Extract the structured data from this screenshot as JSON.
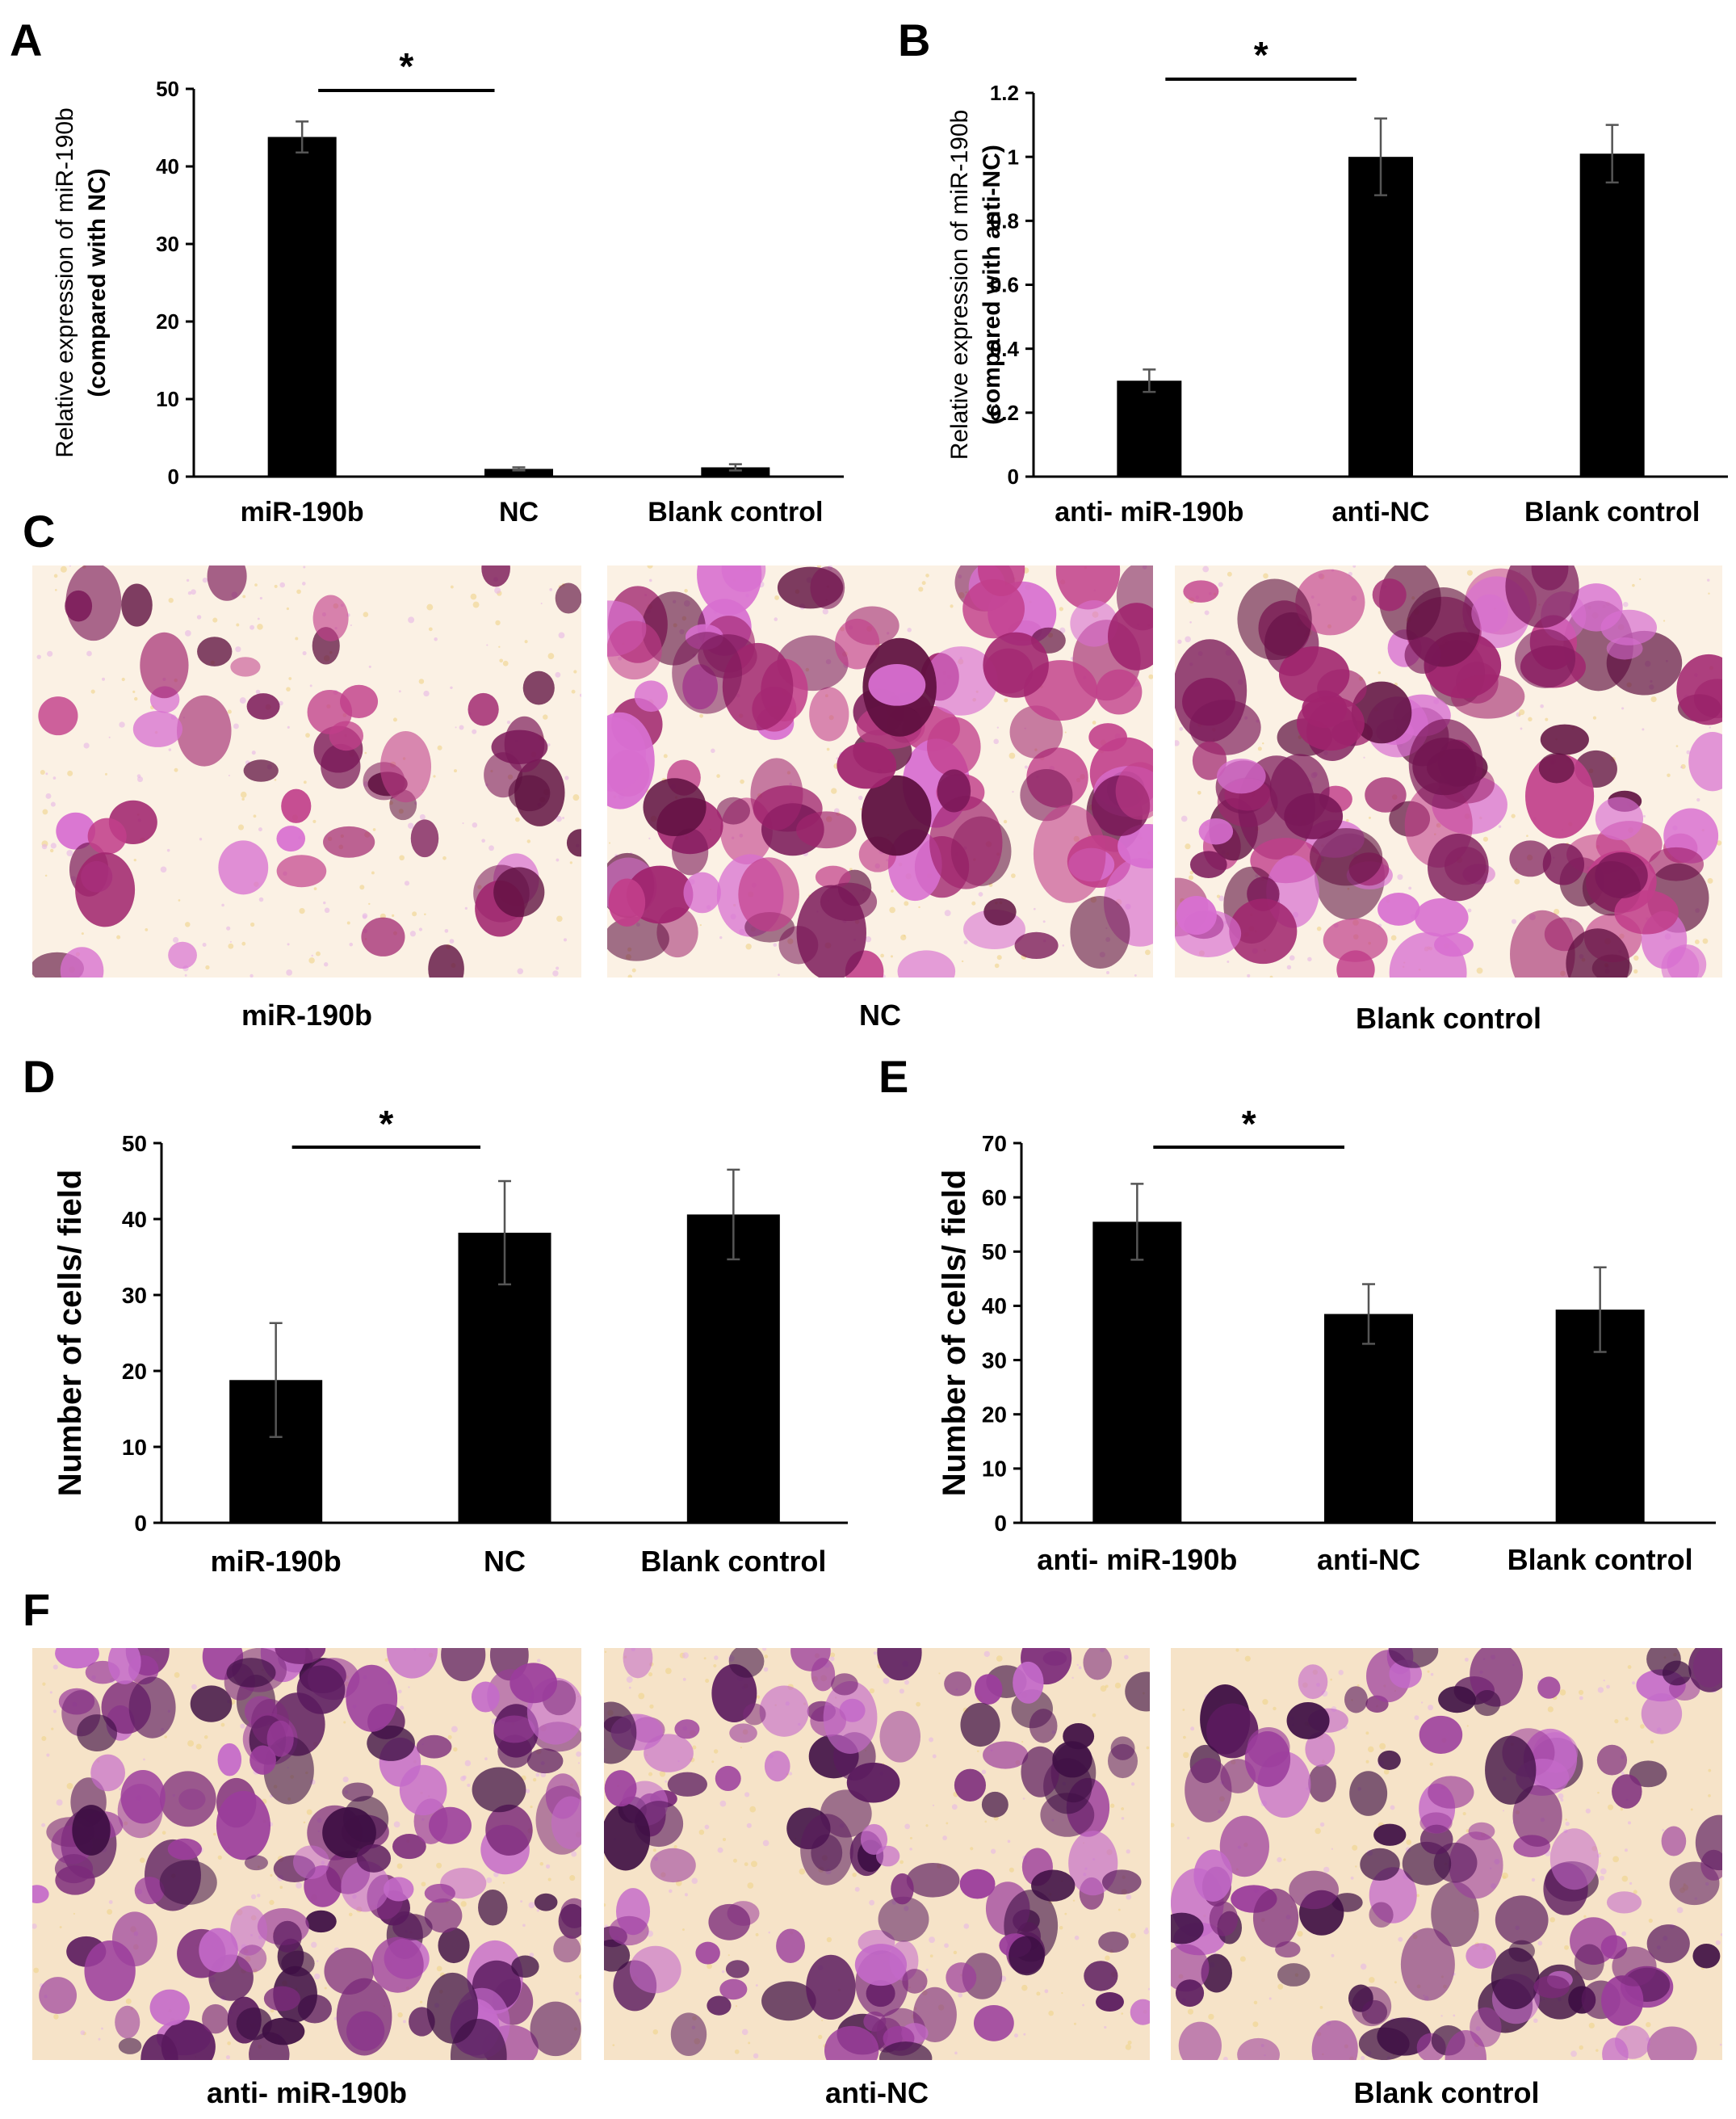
{
  "panels": {
    "A": "A",
    "B": "B",
    "C": "C",
    "D": "D",
    "E": "E",
    "F": "F"
  },
  "colors": {
    "bar": "#000000",
    "background": "#ffffff",
    "stain_light": "#fbf1e4",
    "stain_mid": "#d86fd0",
    "stain_dark": "#7a1858",
    "stain_purple": "#5a1a5e"
  },
  "chart_data": [
    {
      "id": "A",
      "type": "bar",
      "categories": [
        "miR-190b",
        "NC",
        "Blank control"
      ],
      "values": [
        43.8,
        1.0,
        1.2
      ],
      "errors": [
        2.0,
        0.2,
        0.4
      ],
      "ylabel": [
        "Relative expression of miR-190b",
        "(compared with NC)"
      ],
      "yticks": [
        "0",
        "10",
        "20",
        "30",
        "40",
        "50"
      ],
      "ylim": [
        0,
        50
      ],
      "significance": {
        "from": 0,
        "to": 1,
        "label": "*"
      }
    },
    {
      "id": "B",
      "type": "bar",
      "categories": [
        "anti- miR-190b",
        "anti-NC",
        "Blank control"
      ],
      "values": [
        0.3,
        1.0,
        1.01
      ],
      "errors": [
        0.035,
        0.12,
        0.09
      ],
      "ylabel": [
        "Relative expression of miR-190b",
        "(compared with anti-NC)"
      ],
      "yticks": [
        "0",
        "0.2",
        "0.4",
        "0.6",
        "0.8",
        "1",
        "1.2"
      ],
      "ylim": [
        0,
        1.2
      ],
      "significance": {
        "from": 0,
        "to": 1,
        "label": "*"
      }
    },
    {
      "id": "D",
      "type": "bar",
      "categories": [
        "miR-190b",
        "NC",
        "Blank control"
      ],
      "values": [
        18.8,
        38.2,
        40.6
      ],
      "errors": [
        7.5,
        6.8,
        5.9
      ],
      "ylabel": [
        "Number of cells/ field"
      ],
      "yticks": [
        "0",
        "10",
        "20",
        "30",
        "40",
        "50"
      ],
      "ylim": [
        0,
        50
      ],
      "significance": {
        "from": 0,
        "to": 1,
        "label": "*"
      }
    },
    {
      "id": "E",
      "type": "bar",
      "categories": [
        "anti- miR-190b",
        "anti-NC",
        "Blank control"
      ],
      "values": [
        55.5,
        38.5,
        39.3
      ],
      "errors": [
        7.0,
        5.5,
        7.8
      ],
      "ylabel": [
        "Number of cells/ field"
      ],
      "yticks": [
        "0",
        "10",
        "20",
        "30",
        "40",
        "50",
        "60",
        "70"
      ],
      "ylim": [
        0,
        70
      ],
      "significance": {
        "from": 0,
        "to": 1,
        "label": "*"
      }
    }
  ],
  "images": {
    "C": [
      "miR-190b",
      "NC",
      "Blank control"
    ],
    "F": [
      "anti- miR-190b",
      "anti-NC",
      "Blank control"
    ]
  }
}
